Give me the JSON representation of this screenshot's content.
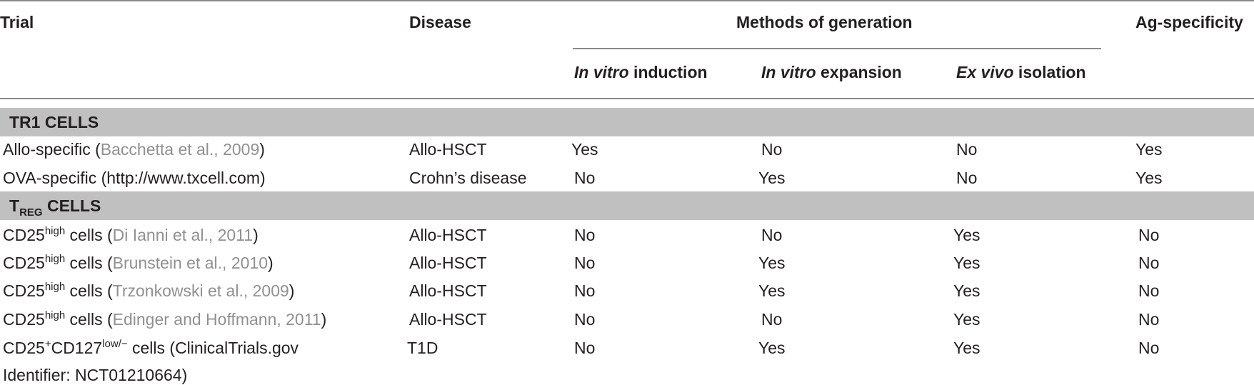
{
  "header": {
    "trial": "Trial",
    "disease": "Disease",
    "methods": "Methods of generation",
    "ag_specificity": "Ag-specificity",
    "in_vitro_induction": {
      "italic": "In vitro",
      "rest": " induction"
    },
    "in_vitro_expansion": {
      "italic": "In vitro",
      "rest": " expansion"
    },
    "ex_vivo_isolation": {
      "italic": "Ex vivo",
      "rest": " isolation"
    }
  },
  "sections": [
    {
      "title": "TR1 CELLS",
      "rows": [
        {
          "trial_pre": "Allo-specific (",
          "ref": "Bacchetta et al., 2009",
          "trial_post": ")",
          "disease": "Allo-HSCT",
          "induction": "Yes",
          "expansion": "No",
          "isolation": "No",
          "ag": "Yes"
        },
        {
          "trial_pre": "OVA-specific (http://www.txcell.com)",
          "disease": "Crohn’s disease",
          "induction": "No",
          "expansion": "Yes",
          "isolation": "No",
          "ag": "Yes"
        }
      ]
    },
    {
      "title_main": "T",
      "title_sub": "REG",
      "title_rest": " CELLS",
      "rows": [
        {
          "cd": "CD25",
          "sup": "high",
          "cells": " cells (",
          "ref": "Di Ianni et al., 2011",
          "post": ")",
          "disease": "Allo-HSCT",
          "induction": "No",
          "expansion": "No",
          "isolation": "Yes",
          "ag": "No"
        },
        {
          "cd": "CD25",
          "sup": "high",
          "cells": " cells (",
          "ref": "Brunstein et al., 2010",
          "post": ")",
          "disease": "Allo-HSCT",
          "induction": "No",
          "expansion": "Yes",
          "isolation": "Yes",
          "ag": "No"
        },
        {
          "cd": "CD25",
          "sup": "high",
          "cells": " cells (",
          "ref": "Trzonkowski et al., 2009",
          "post": ")",
          "disease": "Allo-HSCT",
          "induction": "No",
          "expansion": "Yes",
          "isolation": "Yes",
          "ag": "No"
        },
        {
          "cd": "CD25",
          "sup": "high",
          "cells": " cells (",
          "ref": "Edinger and Hoffmann, 2011",
          "post": ")",
          "disease": "Allo-HSCT",
          "induction": "No",
          "expansion": "No",
          "isolation": "Yes",
          "ag": "No"
        },
        {
          "cd": "CD25",
          "sup": "+",
          "mid": "CD127",
          "sup2": "low/−",
          "cells": " cells (ClinicalTrials.gov",
          "line2": "Identifier: NCT01210664)",
          "disease": "T1D",
          "induction": "No",
          "expansion": "Yes",
          "isolation": "Yes",
          "ag": "No"
        }
      ]
    }
  ]
}
